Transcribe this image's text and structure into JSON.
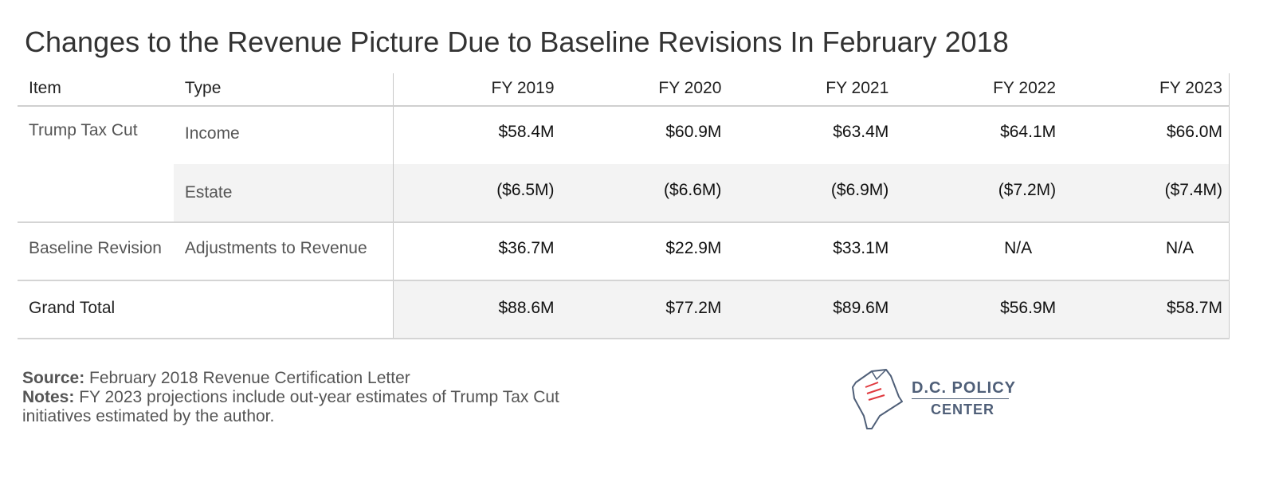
{
  "title": "Changes to the Revenue Picture Due to Baseline Revisions In February 2018",
  "chart_data": {
    "type": "table",
    "columns": [
      "Item",
      "Type",
      "FY 2019",
      "FY 2020",
      "FY 2021",
      "FY 2022",
      "FY 2023"
    ],
    "rows": [
      {
        "item": "Trump Tax Cut",
        "type": "Income",
        "values": [
          "$58.4M",
          "$60.9M",
          "$63.4M",
          "$64.1M",
          "$66.0M"
        ]
      },
      {
        "item": "",
        "type": "Estate",
        "values": [
          "($6.5M)",
          "($6.6M)",
          "($6.9M)",
          "($7.2M)",
          "($7.4M)"
        ]
      },
      {
        "item": "Baseline Revision",
        "type": "Adjustments to Revenue",
        "values": [
          "$36.7M",
          "$22.9M",
          "$33.1M",
          "N/A",
          "N/A"
        ]
      },
      {
        "item": "Grand Total",
        "type": "",
        "values": [
          "$88.6M",
          "$77.2M",
          "$89.6M",
          "$56.9M",
          "$58.7M"
        ]
      }
    ]
  },
  "footer": {
    "source_label": "Source:",
    "source_text": "February 2018 Revenue Certification Letter",
    "notes_label": "Notes:",
    "notes_text": "FY 2023 projections include out-year estimates of Trump Tax Cut initiatives estimated by the author."
  },
  "logo": {
    "line1": "D.C. POLICY",
    "line2": "CENTER",
    "icon": "dc-map-document-icon",
    "color": "#4f5f78",
    "accent": "#e0393e"
  }
}
